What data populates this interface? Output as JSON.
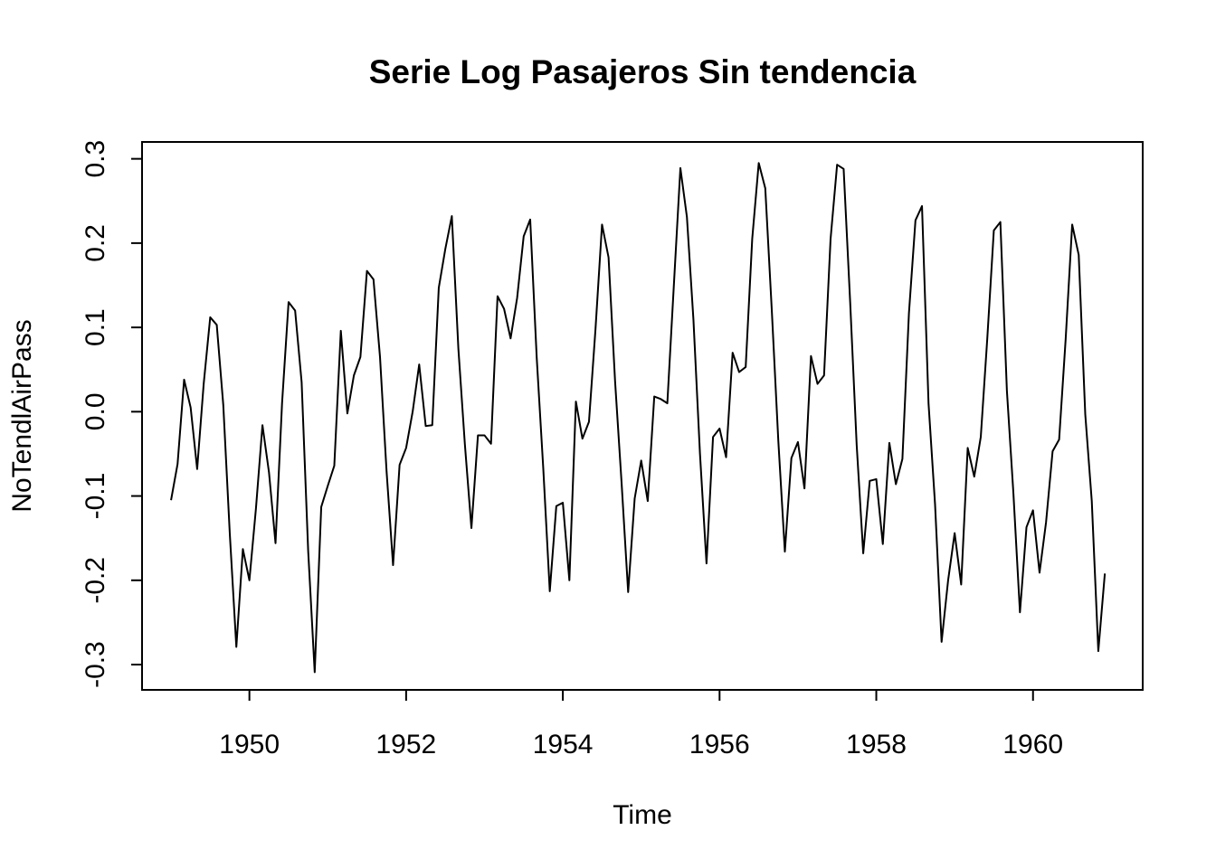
{
  "chart_data": {
    "type": "line",
    "title": "Serie Log Pasajeros Sin tendencia",
    "xlabel": "Time",
    "ylabel": "NoTendlAirPass",
    "xlim": [
      1948.63,
      1961.4
    ],
    "ylim": [
      -0.33,
      0.32
    ],
    "x_ticks": [
      1950,
      1952,
      1954,
      1956,
      1958,
      1960
    ],
    "x_tick_labels": [
      "1950",
      "1952",
      "1954",
      "1956",
      "1958",
      "1960"
    ],
    "y_ticks": [
      -0.3,
      -0.2,
      -0.1,
      0.0,
      0.1,
      0.2,
      0.3
    ],
    "y_tick_labels": [
      "-0.3",
      "-0.2",
      "-0.1",
      "0.0",
      "0.1",
      "0.2",
      "0.3"
    ],
    "grid": false,
    "x_start": 1949.0,
    "x_step": 0.0833333,
    "series": [
      {
        "color": "#000000",
        "values": [
          -0.105,
          -0.062,
          0.038,
          0.005,
          -0.068,
          0.033,
          0.112,
          0.103,
          0.008,
          -0.145,
          -0.279,
          -0.163,
          -0.2,
          -0.115,
          -0.016,
          -0.072,
          -0.156,
          0.01,
          0.13,
          0.12,
          0.035,
          -0.165,
          -0.309,
          -0.113,
          -0.088,
          -0.064,
          0.096,
          -0.002,
          0.043,
          0.065,
          0.167,
          0.157,
          0.065,
          -0.07,
          -0.182,
          -0.063,
          -0.043,
          0.0,
          0.056,
          -0.017,
          -0.016,
          0.147,
          0.193,
          0.232,
          0.075,
          -0.039,
          -0.138,
          -0.028,
          -0.028,
          -0.038,
          0.137,
          0.122,
          0.087,
          0.135,
          0.208,
          0.228,
          0.064,
          -0.067,
          -0.213,
          -0.112,
          -0.108,
          -0.2,
          0.012,
          -0.032,
          -0.012,
          0.098,
          0.222,
          0.183,
          0.036,
          -0.085,
          -0.214,
          -0.103,
          -0.058,
          -0.106,
          0.018,
          0.015,
          0.01,
          0.15,
          0.289,
          0.231,
          0.109,
          -0.05,
          -0.18,
          -0.03,
          -0.02,
          -0.054,
          0.07,
          0.047,
          0.053,
          0.205,
          0.295,
          0.265,
          0.12,
          -0.035,
          -0.166,
          -0.055,
          -0.036,
          -0.091,
          0.066,
          0.033,
          0.043,
          0.205,
          0.293,
          0.288,
          0.13,
          -0.04,
          -0.168,
          -0.082,
          -0.08,
          -0.157,
          -0.037,
          -0.086,
          -0.056,
          0.117,
          0.227,
          0.244,
          0.01,
          -0.11,
          -0.273,
          -0.2,
          -0.144,
          -0.205,
          -0.043,
          -0.077,
          -0.03,
          0.087,
          0.215,
          0.225,
          0.025,
          -0.097,
          -0.238,
          -0.137,
          -0.117,
          -0.191,
          -0.131,
          -0.047,
          -0.033,
          0.086,
          0.222,
          0.186,
          -0.003,
          -0.106,
          -0.284,
          -0.192
        ]
      }
    ]
  }
}
